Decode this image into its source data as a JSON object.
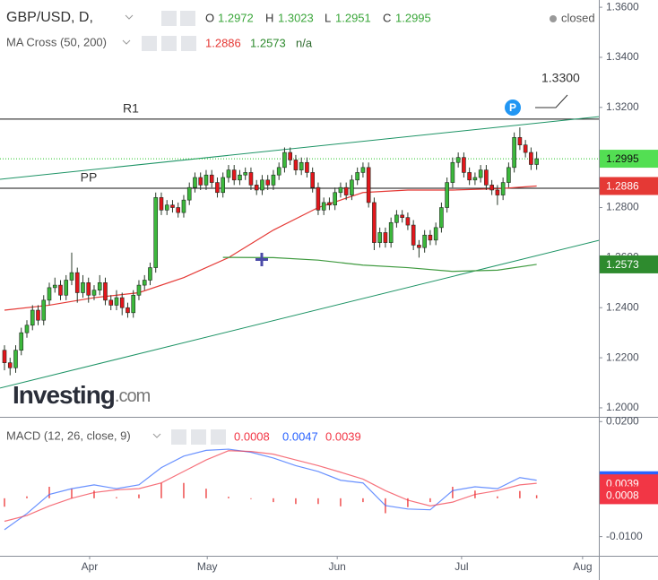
{
  "chart_data": {
    "type": "candlestick",
    "header": {
      "symbol": "GBP/USD, D,",
      "ohlc_labels": [
        "O",
        "H",
        "L",
        "C"
      ],
      "status": "closed"
    },
    "watermark": {
      "brand": "Investing",
      "suffix": ".com"
    },
    "up_color": "#3cb83c",
    "down_color": "#e3161c",
    "open": [
      1.223,
      1.218,
      1.216,
      1.223,
      1.23,
      1.233,
      1.239,
      1.235,
      1.243,
      1.248,
      1.249,
      1.245,
      1.251,
      1.254,
      1.246,
      1.25,
      1.245,
      1.247,
      1.25,
      1.243,
      1.241,
      1.244,
      1.24,
      1.238,
      1.245,
      1.249,
      1.251,
      1.256,
      1.284,
      1.279,
      1.281,
      1.28,
      1.278,
      1.283,
      1.288,
      1.292,
      1.289,
      1.293,
      1.29,
      1.286,
      1.292,
      1.295,
      1.291,
      1.293,
      1.294,
      1.289,
      1.287,
      1.291,
      1.289,
      1.293,
      1.296,
      1.302,
      1.299,
      1.295,
      1.298,
      1.294,
      1.288,
      1.279,
      1.282,
      1.281,
      1.286,
      1.288,
      1.285,
      1.291,
      1.294,
      1.296,
      1.282,
      1.266,
      1.27,
      1.266,
      1.274,
      1.277,
      1.276,
      1.273,
      1.265,
      1.264,
      1.269,
      1.267,
      1.272,
      1.28,
      1.29,
      1.298,
      1.3,
      1.294,
      1.291,
      1.292,
      1.295,
      1.289,
      1.287,
      1.285,
      1.29,
      1.296,
      1.308,
      1.305,
      1.302,
      1.2972
    ],
    "high": [
      1.225,
      1.22,
      1.225,
      1.232,
      1.235,
      1.241,
      1.241,
      1.245,
      1.25,
      1.252,
      1.251,
      1.253,
      1.262,
      1.256,
      1.253,
      1.252,
      1.249,
      1.253,
      1.252,
      1.245,
      1.247,
      1.246,
      1.242,
      1.247,
      1.251,
      1.253,
      1.258,
      1.286,
      1.286,
      1.283,
      1.283,
      1.282,
      1.285,
      1.29,
      1.294,
      1.294,
      1.295,
      1.295,
      1.292,
      1.294,
      1.297,
      1.297,
      1.295,
      1.296,
      1.296,
      1.291,
      1.293,
      1.293,
      1.295,
      1.298,
      1.304,
      1.304,
      1.301,
      1.3,
      1.3,
      1.296,
      1.29,
      1.284,
      1.284,
      1.288,
      1.29,
      1.29,
      1.293,
      1.296,
      1.298,
      1.298,
      1.284,
      1.272,
      1.272,
      1.276,
      1.279,
      1.279,
      1.278,
      1.275,
      1.267,
      1.271,
      1.271,
      1.274,
      1.282,
      1.292,
      1.3,
      1.302,
      1.302,
      1.296,
      1.294,
      1.297,
      1.297,
      1.291,
      1.289,
      1.292,
      1.298,
      1.31,
      1.312,
      1.307,
      1.304,
      1.3023
    ],
    "low": [
      1.215,
      1.213,
      1.214,
      1.221,
      1.228,
      1.231,
      1.233,
      1.233,
      1.241,
      1.246,
      1.243,
      1.243,
      1.249,
      1.242,
      1.244,
      1.242,
      1.243,
      1.245,
      1.241,
      1.239,
      1.239,
      1.237,
      1.236,
      1.236,
      1.243,
      1.247,
      1.249,
      1.254,
      1.277,
      1.277,
      1.278,
      1.276,
      1.276,
      1.281,
      1.286,
      1.287,
      1.287,
      1.288,
      1.284,
      1.284,
      1.29,
      1.289,
      1.289,
      1.291,
      1.287,
      1.285,
      1.285,
      1.287,
      1.287,
      1.291,
      1.294,
      1.297,
      1.293,
      1.293,
      1.292,
      1.286,
      1.277,
      1.277,
      1.279,
      1.279,
      1.284,
      1.283,
      1.283,
      1.289,
      1.292,
      1.28,
      1.263,
      1.264,
      1.264,
      1.264,
      1.272,
      1.274,
      1.271,
      1.263,
      1.26,
      1.262,
      1.265,
      1.265,
      1.27,
      1.278,
      1.288,
      1.296,
      1.292,
      1.289,
      1.289,
      1.29,
      1.287,
      1.285,
      1.281,
      1.283,
      1.288,
      1.294,
      1.303,
      1.3,
      1.295,
      1.2951
    ],
    "close": [
      1.218,
      1.216,
      1.223,
      1.23,
      1.233,
      1.239,
      1.235,
      1.243,
      1.248,
      1.249,
      1.245,
      1.251,
      1.254,
      1.246,
      1.25,
      1.245,
      1.247,
      1.25,
      1.243,
      1.241,
      1.244,
      1.24,
      1.238,
      1.245,
      1.249,
      1.251,
      1.256,
      1.284,
      1.279,
      1.281,
      1.28,
      1.278,
      1.283,
      1.288,
      1.292,
      1.289,
      1.293,
      1.29,
      1.286,
      1.292,
      1.295,
      1.291,
      1.293,
      1.294,
      1.289,
      1.287,
      1.291,
      1.289,
      1.293,
      1.296,
      1.302,
      1.299,
      1.295,
      1.298,
      1.294,
      1.288,
      1.279,
      1.282,
      1.281,
      1.286,
      1.288,
      1.285,
      1.291,
      1.294,
      1.296,
      1.282,
      1.266,
      1.27,
      1.266,
      1.274,
      1.277,
      1.276,
      1.273,
      1.265,
      1.264,
      1.269,
      1.267,
      1.272,
      1.28,
      1.29,
      1.298,
      1.3,
      1.294,
      1.291,
      1.292,
      1.295,
      1.289,
      1.287,
      1.285,
      1.29,
      1.296,
      1.308,
      1.305,
      1.302,
      1.2972,
      1.2995
    ],
    "close_color": "#22c422",
    "xlim": [
      -0.8,
      106.1
    ],
    "xticks": [
      {
        "value": 15.2,
        "label": "Apr"
      },
      {
        "value": 36.2,
        "label": "May"
      },
      {
        "value": 59.4,
        "label": "Jun"
      },
      {
        "value": 81.6,
        "label": "Jul"
      },
      {
        "value": 103.2,
        "label": "Aug"
      }
    ],
    "ylim": [
      1.1964,
      1.3629
    ],
    "yticks": [
      {
        "value": 1.36,
        "label": "1.3600"
      },
      {
        "value": 1.34,
        "label": "1.3400"
      },
      {
        "value": 1.32,
        "label": "1.3200"
      },
      {
        "value": 1.28,
        "label": "1.2800"
      },
      {
        "value": 1.26,
        "label": "1.2600"
      },
      {
        "value": 1.24,
        "label": "1.2400"
      },
      {
        "value": 1.22,
        "label": "1.2200"
      },
      {
        "value": 1.2,
        "label": "1.2000"
      }
    ],
    "ma": {
      "name": "MA Cross (50, 200)",
      "note": "n/a",
      "series": [
        {
          "color": "#e53935",
          "badge_color": "#e53935",
          "x": [
            0,
            8,
            16,
            24,
            32,
            40,
            48,
            56,
            64,
            72,
            80,
            88,
            95
          ],
          "values": [
            1.239,
            1.241,
            1.244,
            1.246,
            1.252,
            1.26,
            1.271,
            1.28,
            1.286,
            1.287,
            1.287,
            1.2875,
            1.2886
          ]
        },
        {
          "color": "#3f9a3f",
          "badge_color": "#2e8b2e",
          "x": [
            39,
            48,
            56,
            64,
            72,
            80,
            88,
            95
          ],
          "values": [
            1.2601,
            1.26,
            1.259,
            1.257,
            1.256,
            1.2545,
            1.255,
            1.2573
          ]
        }
      ]
    },
    "levels": [
      {
        "label": "R1",
        "value": 1.3153
      },
      {
        "label": "PP",
        "value": 1.2877
      }
    ],
    "trendlines": [
      {
        "x": [
          -0.8,
          106.1
        ],
        "y": [
          1.2913,
          1.3163
        ]
      },
      {
        "x": [
          -0.8,
          106.1
        ],
        "y": [
          1.2079,
          1.2669
        ]
      }
    ],
    "annotations": {
      "pivot": "P",
      "target": "1.3300"
    },
    "macd": {
      "title": "MACD (12, 26, close, 9)",
      "x": [
        0,
        4,
        8,
        12,
        16,
        20,
        24,
        28,
        32,
        36,
        40,
        44,
        48,
        52,
        56,
        60,
        64,
        68,
        72,
        76,
        80,
        84,
        88,
        92,
        95
      ],
      "histogram": {
        "color": "#ef4f4f",
        "values": [
          -0.0022,
          0.0005,
          0.003,
          0.0025,
          0.002,
          0.0003,
          0.001,
          0.004,
          0.004,
          0.0025,
          0.0004,
          -0.0002,
          -0.001,
          -0.0015,
          -0.0015,
          -0.0021,
          -0.001,
          -0.0039,
          -0.0023,
          -0.001,
          0.003,
          0.002,
          0.0005,
          0.0019,
          0.0008
        ]
      },
      "macd": {
        "color": "#2962ff",
        "values": [
          -0.0082,
          -0.004,
          0.001,
          0.0025,
          0.0035,
          0.0025,
          0.0035,
          0.008,
          0.011,
          0.0125,
          0.0128,
          0.012,
          0.0105,
          0.0085,
          0.007,
          0.0047,
          0.004,
          -0.0019,
          -0.0028,
          -0.003,
          0.002,
          0.003,
          0.0025,
          0.0054,
          0.0047
        ]
      },
      "signal": {
        "color": "#f23645",
        "values": [
          -0.006,
          -0.0045,
          -0.002,
          0.0,
          0.0015,
          0.0022,
          0.0025,
          0.004,
          0.007,
          0.01,
          0.0124,
          0.0122,
          0.0115,
          0.01,
          0.0085,
          0.0068,
          0.005,
          0.002,
          -0.0005,
          -0.002,
          -0.001,
          0.001,
          0.002,
          0.0035,
          0.0039
        ]
      },
      "ylim": [
        -0.015,
        0.021
      ],
      "yticks": [
        {
          "value": 0.02,
          "label": "0.0200"
        },
        {
          "value": -0.01,
          "label": "-0.0100"
        }
      ]
    }
  }
}
